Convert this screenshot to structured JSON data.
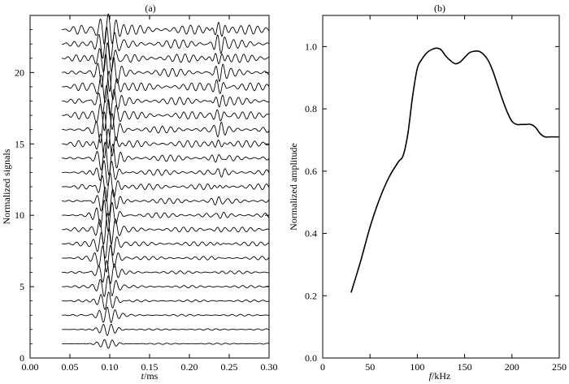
{
  "chart_data": [
    {
      "type": "line",
      "panel_label": "(a)",
      "ylabel": "Normalized signals",
      "xlabel_italic": "t",
      "xlabel_rest": "/ms",
      "xlim": [
        0.0,
        0.3
      ],
      "ylim": [
        0,
        24
      ],
      "x_ticks": [
        "0.00",
        "0.05",
        "0.10",
        "0.15",
        "0.20",
        "0.25",
        "0.30"
      ],
      "y_ticks": [
        "0",
        "5",
        "10",
        "15",
        "20"
      ],
      "grid": false,
      "trace_count": 23,
      "trace_offsets": [
        1,
        2,
        3,
        4,
        5,
        6,
        7,
        8,
        9,
        10,
        11,
        12,
        13,
        14,
        15,
        16,
        17,
        18,
        19,
        20,
        21,
        22,
        23
      ],
      "trace_start_time": 0.04,
      "trace_end_time": 0.3,
      "main_arrival": {
        "center": 0.097,
        "width": 0.014,
        "frequency_khz": 100
      },
      "late_arrival": {
        "center": 0.237,
        "width": 0.009,
        "frequency_khz": 115
      }
    },
    {
      "type": "line",
      "panel_label": "(b)",
      "ylabel": "Normalized amplitude",
      "xlabel_italic": "f",
      "xlabel_rest": "/kHz",
      "xlim": [
        0,
        250
      ],
      "ylim": [
        0.0,
        1.1
      ],
      "x_ticks": [
        "0",
        "50",
        "100",
        "150",
        "200",
        "250"
      ],
      "y_ticks": [
        "0.0",
        "0.2",
        "0.4",
        "0.6",
        "0.8",
        "1.0"
      ],
      "grid": false,
      "series": [
        {
          "x": [
            30,
            40,
            50,
            60,
            70,
            80,
            85,
            90,
            95,
            100,
            105,
            110,
            115,
            120,
            125,
            130,
            135,
            140,
            145,
            150,
            155,
            160,
            165,
            170,
            175,
            180,
            185,
            190,
            195,
            200,
            205,
            210,
            215,
            220,
            225,
            230,
            235,
            240,
            245,
            250
          ],
          "y": [
            0.21,
            0.31,
            0.42,
            0.51,
            0.58,
            0.63,
            0.65,
            0.72,
            0.84,
            0.93,
            0.96,
            0.98,
            0.99,
            0.995,
            0.99,
            0.97,
            0.955,
            0.945,
            0.95,
            0.965,
            0.98,
            0.985,
            0.985,
            0.975,
            0.955,
            0.92,
            0.875,
            0.83,
            0.79,
            0.76,
            0.75,
            0.75,
            0.75,
            0.75,
            0.74,
            0.72,
            0.71,
            0.71,
            0.71,
            0.71
          ]
        }
      ]
    }
  ]
}
